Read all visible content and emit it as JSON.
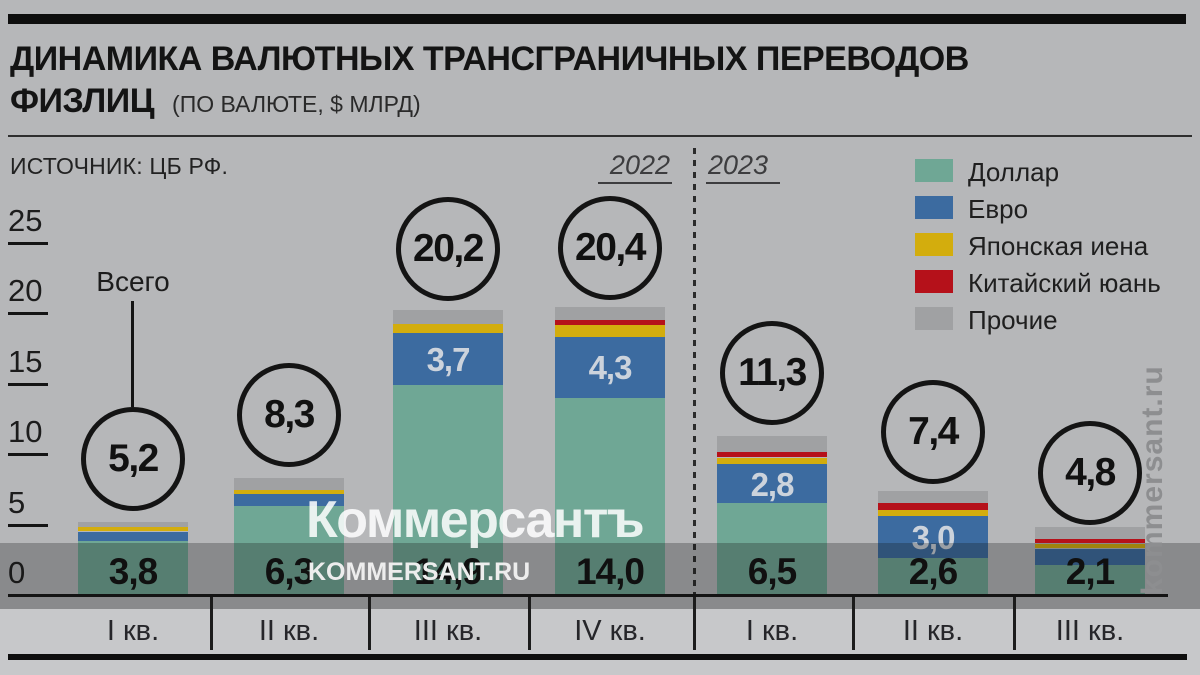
{
  "header": {
    "title_line1": "ДИНАМИКА ВАЛЮТНЫХ ТРАНСГРАНИЧНЫХ ПЕРЕВОДОВ",
    "title_line2": "ФИЗЛИЦ",
    "subtitle": "(ПО ВАЛЮТЕ, $ МЛРД)",
    "source": "ИСТОЧНИК: ЦБ РФ.",
    "years": [
      "2022",
      "2023"
    ]
  },
  "legend": {
    "items": [
      {
        "label": "Доллар",
        "color": "#6fa795"
      },
      {
        "label": "Евро",
        "color": "#3c6ba0"
      },
      {
        "label": "Японская иена",
        "color": "#d3ad0d"
      },
      {
        "label": "Китайский юань",
        "color": "#b5111a"
      },
      {
        "label": "Прочие",
        "color": "#a0a1a3"
      }
    ]
  },
  "annotation": {
    "total_label": "Всего"
  },
  "watermarks": {
    "center": "Коммерсантъ",
    "band": "KOMMERSANT.RU",
    "side": "kommersant.ru"
  },
  "chart_data": {
    "type": "bar",
    "stacked": true,
    "unit": "$ млрд",
    "ylim": [
      0,
      25
    ],
    "y_ticks": [
      0,
      5,
      10,
      15,
      20,
      25
    ],
    "grid": false,
    "legend_position": "top-right",
    "categories": [
      "I кв.",
      "II кв.",
      "III кв.",
      "IV кв.",
      "I кв.",
      "II кв.",
      "III кв."
    ],
    "category_years": [
      "2022",
      "2022",
      "2022",
      "2022",
      "2023",
      "2023",
      "2023"
    ],
    "totals": [
      5.2,
      8.3,
      20.2,
      20.4,
      11.3,
      7.4,
      4.8
    ],
    "total_labels": [
      "5,2",
      "8,3",
      "20,2",
      "20,4",
      "11,3",
      "7,4",
      "4,8"
    ],
    "series": [
      {
        "name": "Доллар",
        "color": "#6fa795",
        "values": [
          3.8,
          6.3,
          14.9,
          14.0,
          6.5,
          2.6,
          2.1
        ],
        "labels": [
          "3,8",
          "6,3",
          "14,9",
          "14,0",
          "6,5",
          "2,6",
          "2,1"
        ]
      },
      {
        "name": "Евро",
        "color": "#3c6ba0",
        "values": [
          0.7,
          0.9,
          3.7,
          4.3,
          2.8,
          3.0,
          1.2
        ],
        "labels": [
          null,
          null,
          "3,7",
          "4,3",
          "2,8",
          "3,0",
          null
        ]
      },
      {
        "name": "Японская иена",
        "color": "#d3ad0d",
        "values": [
          0.3,
          0.25,
          0.65,
          0.85,
          0.45,
          0.45,
          0.35
        ],
        "labels": [
          null,
          null,
          null,
          null,
          null,
          null,
          null
        ]
      },
      {
        "name": "Китайский юань",
        "color": "#b5111a",
        "values": [
          0,
          0,
          0,
          0.35,
          0.4,
          0.45,
          0.35
        ],
        "labels": [
          null,
          null,
          null,
          null,
          null,
          null,
          null
        ]
      },
      {
        "name": "Прочие",
        "color": "#a0a1a3",
        "values": [
          0.4,
          0.85,
          0.95,
          0.9,
          1.15,
          0.9,
          0.8
        ],
        "labels": [
          null,
          null,
          null,
          null,
          null,
          null,
          null
        ]
      }
    ]
  }
}
